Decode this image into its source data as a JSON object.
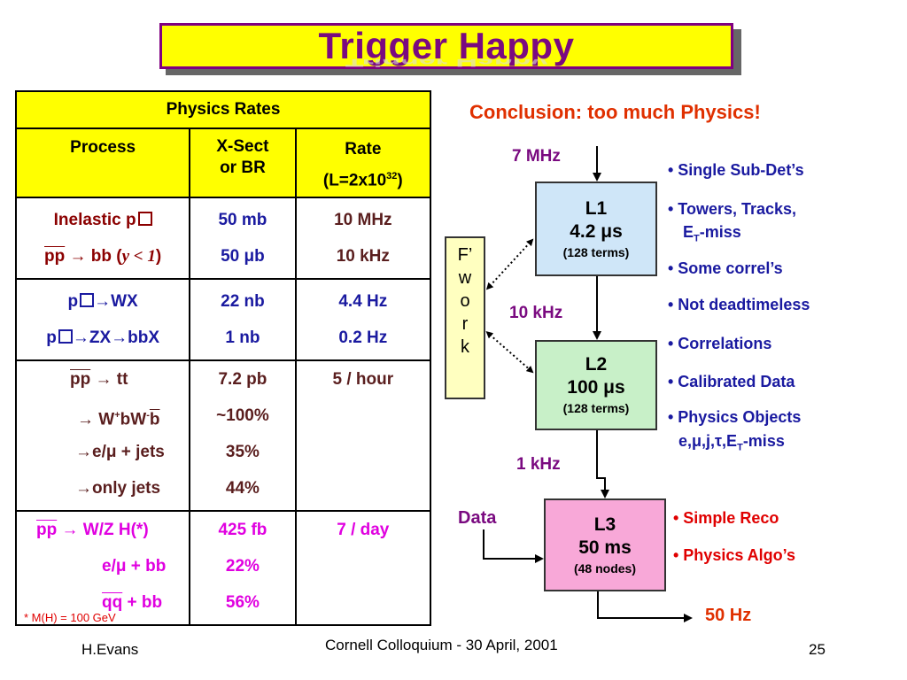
{
  "title": "Trigger Happy",
  "table": {
    "heading": "Physics Rates",
    "columns": {
      "process": "Process",
      "xsect_line1": "X-Sect",
      "xsect_line2": "or BR",
      "rate_line1": "Rate",
      "rate_line2": "(L=2x10",
      "rate_exp": "32",
      "rate_close": ")"
    },
    "g1": {
      "p1": "Inelastic p",
      "p2a": "pp",
      "p2b": " → bb (",
      "p2c": "y < 1",
      "p2d": ")",
      "x1": "50 mb",
      "x2": "50 μb",
      "r1": "10 MHz",
      "r2": "10 kHz"
    },
    "g2": {
      "p1a": "p",
      "p1b": "→WX",
      "p2a": "p",
      "p2b": "→ZX→bbX",
      "x1": "22 nb",
      "x2": "1 nb",
      "r1": "4.4 Hz",
      "r2": "0.2 Hz"
    },
    "g3": {
      "p1a": "pp",
      "p1b": " → tt",
      "p2a": "→ W",
      "p2b": "+",
      "p2c": "bW",
      "p2d": "-",
      "p2e": "b",
      "p3": "→e/μ + jets",
      "p4": "→only jets",
      "x1": "7.2 pb",
      "x2": "~100%",
      "x3": "35%",
      "x4": "44%",
      "r1": "5 / hour"
    },
    "g4": {
      "p1a": "pp",
      "p1b": " → W/Z H(*)",
      "p2": "e/μ + bb",
      "p3a": "qq",
      "p3b": " + bb",
      "x1": "425 fb",
      "x2": "22%",
      "x3": "56%",
      "r1": "7 / day"
    }
  },
  "footnote": "* M(H) = 100 GeV",
  "conclusion": "Conclusion: too much Physics!",
  "flow": {
    "input_rate": "7 MHz",
    "l1": {
      "name": "L1",
      "time": "4.2 μs",
      "detail": "(128 terms)"
    },
    "rate_l1_l2": "10 kHz",
    "l2": {
      "name": "L2",
      "time": "100 μs",
      "detail": "(128 terms)"
    },
    "rate_l2_l3": "1 kHz",
    "l3": {
      "name": "L3",
      "time": "50 ms",
      "detail": "(48 nodes)"
    },
    "output_rate": "50 Hz",
    "data_label": "Data",
    "framework": [
      "F’",
      "w",
      "o",
      "r",
      "k"
    ]
  },
  "l1_bullets": [
    "• Single Sub-Det’s",
    "• Towers, Tracks,",
    "E",
    "T",
    "-miss",
    "• Some correl’s",
    "• Not deadtimeless"
  ],
  "l2_bullets": [
    "• Correlations",
    "• Calibrated Data",
    "• Physics Objects",
    "e,μ,j,τ,E",
    "T",
    "-miss"
  ],
  "l3_bullets": [
    "• Simple Reco",
    "• Physics Algo’s"
  ],
  "footer": {
    "author": "H.Evans",
    "venue": "Cornell Colloquium - 30 April, 2001",
    "page": "25"
  },
  "colors": {
    "title_bg": "#ffff00",
    "title_border": "#800080",
    "l1_bg": "#cfe6f8",
    "l2_bg": "#c8f0c8",
    "l3_bg": "#f8a8d8",
    "framework_bg": "#ffffc0"
  }
}
